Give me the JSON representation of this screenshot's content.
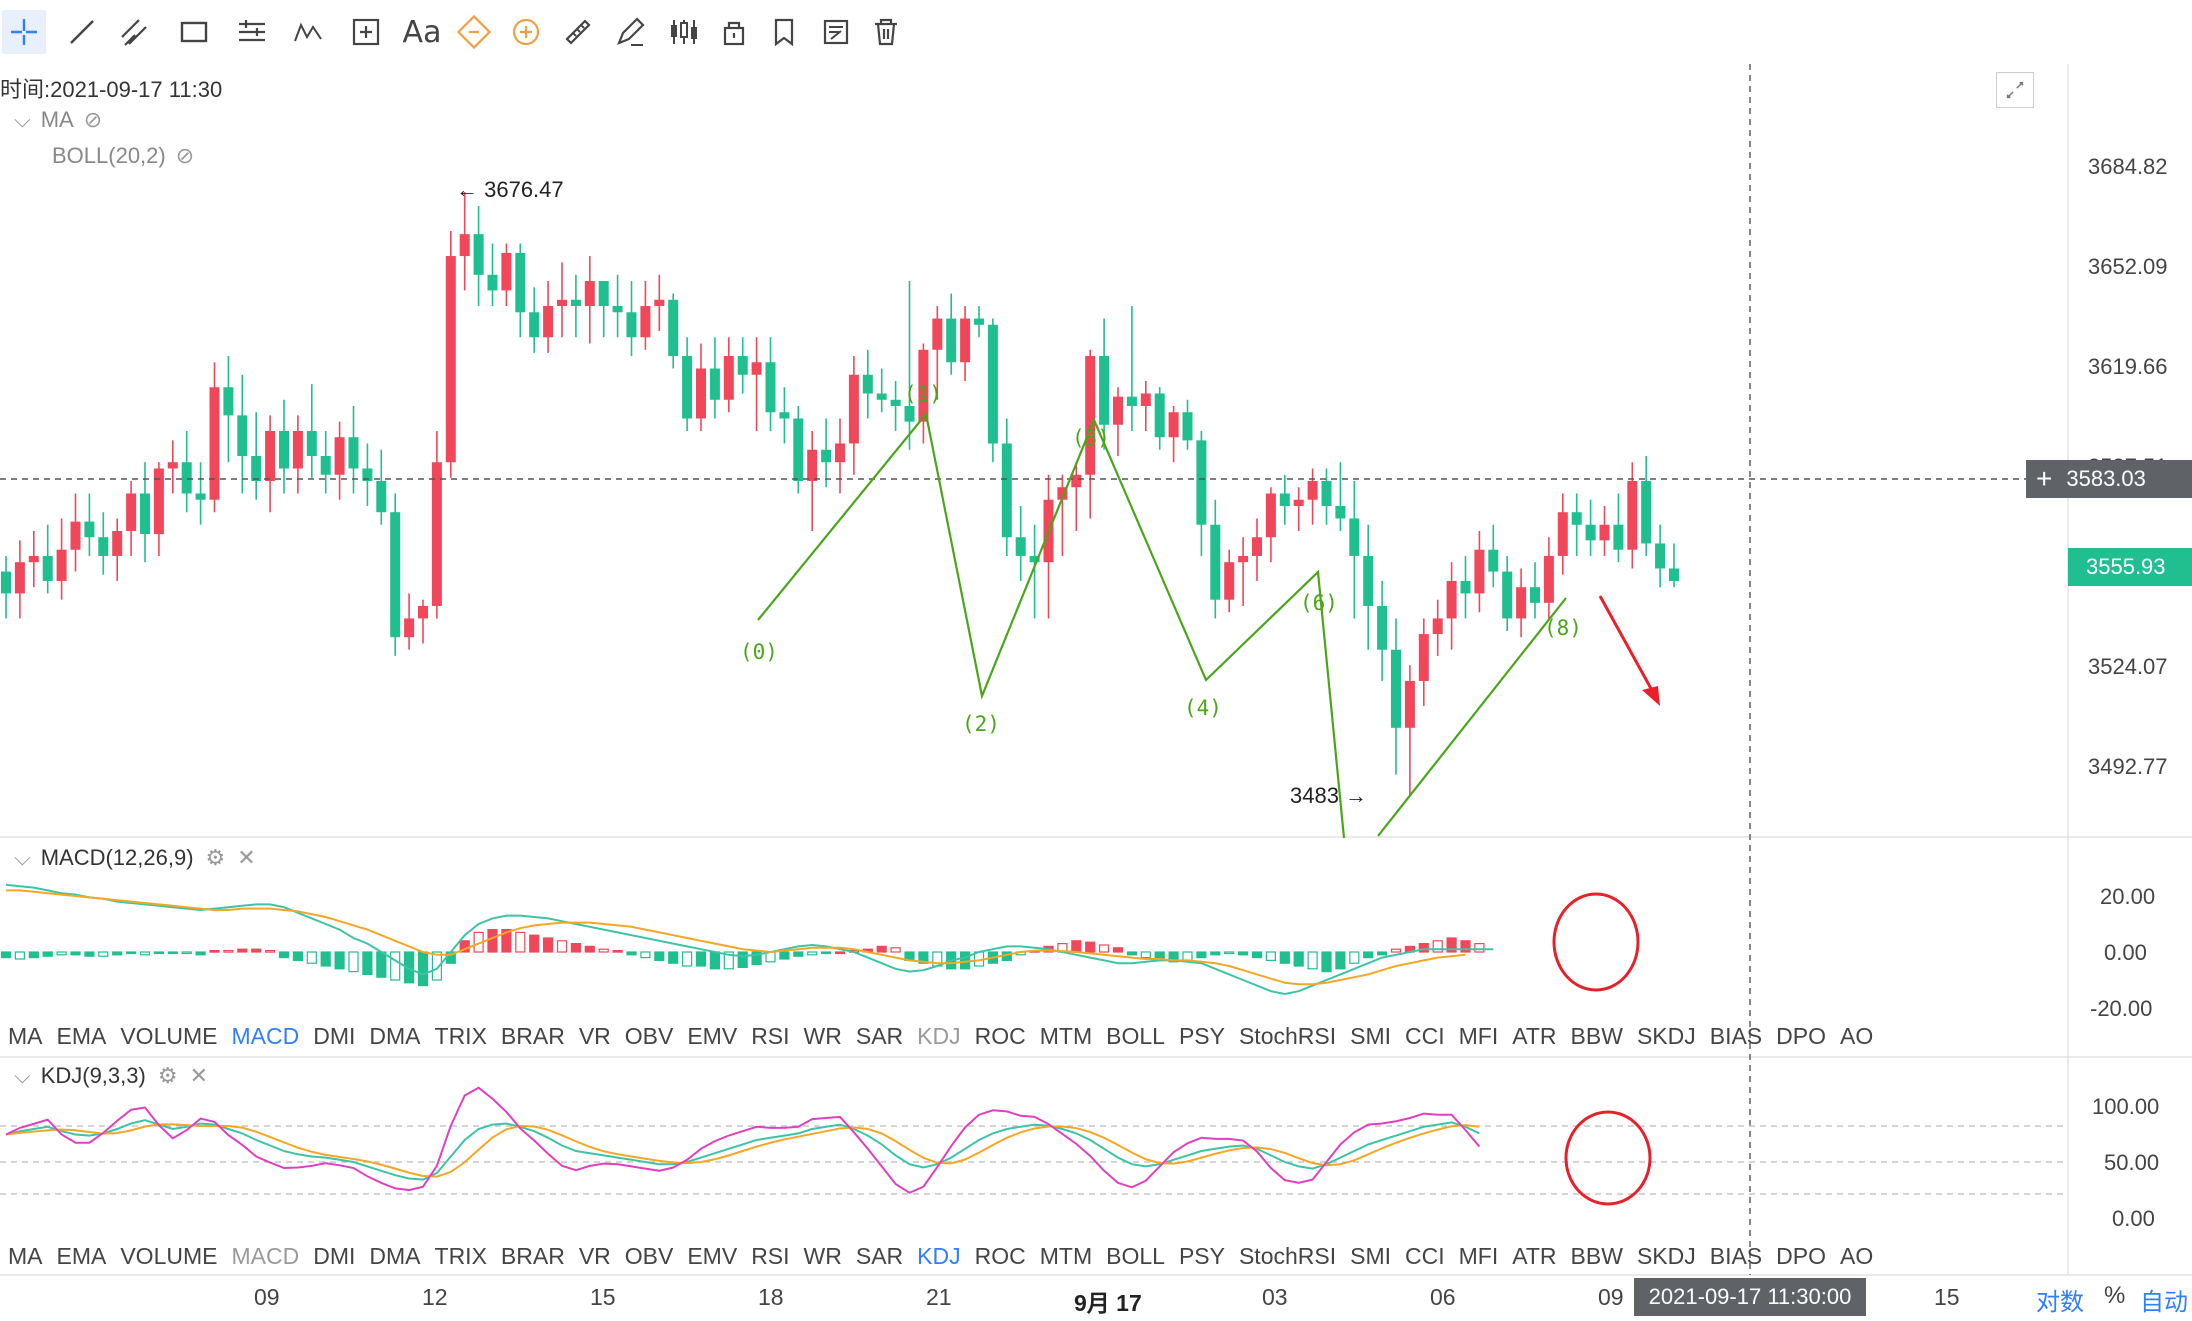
{
  "toolbar": {
    "tools": [
      {
        "icon": "crosshair-icon"
      },
      {
        "icon": "trend-line-icon"
      },
      {
        "icon": "parallel-channel-icon"
      },
      {
        "icon": "rectangle-icon"
      },
      {
        "icon": "fibonacci-icon"
      },
      {
        "icon": "elliott-wave-icon"
      },
      {
        "icon": "measure-box-icon"
      },
      {
        "icon": "text-icon",
        "label": "Aa"
      },
      {
        "icon": "magnet-icon"
      },
      {
        "icon": "magnet-strong-icon"
      },
      {
        "icon": "ruler-icon"
      },
      {
        "icon": "pencil-icon"
      },
      {
        "icon": "candles-icon"
      },
      {
        "icon": "lock-icon"
      },
      {
        "icon": "bookmark-icon"
      },
      {
        "icon": "note-icon"
      },
      {
        "icon": "trash-icon"
      }
    ]
  },
  "info": {
    "time_label": "时间:2021-09-17 11:30",
    "ma_label": "MA",
    "boll_label": "BOLL(20,2)",
    "max_price_label": "3676.47",
    "min_price_label": "3483"
  },
  "indicators": {
    "macd_label": "MACD(12,26,9)",
    "kdj_label": "KDJ(9,3,3)",
    "tabs": [
      "MA",
      "EMA",
      "VOLUME",
      "MACD",
      "DMI",
      "DMA",
      "TRIX",
      "BRAR",
      "VR",
      "OBV",
      "EMV",
      "RSI",
      "WR",
      "SAR",
      "KDJ",
      "ROC",
      "MTM",
      "BOLL",
      "PSY",
      "StochRSI",
      "SMI",
      "CCI",
      "MFI",
      "ATR",
      "BBW",
      "SKDJ",
      "BIAS",
      "DPO",
      "AO"
    ],
    "tabs_row1_active": "MACD",
    "tabs_row1_muted": "KDJ",
    "tabs_row2_active": "KDJ",
    "tabs_row2_muted": "MACD"
  },
  "price_axis": {
    "ticks": [
      "3684.82",
      "3652.09",
      "3619.66",
      "3587.51",
      "3524.07",
      "3492.77"
    ],
    "crosshair_price": "3583.03",
    "current_price": "3555.93",
    "current_color": "#1fbf8f",
    "macd_ticks": [
      "20.00",
      "0.00",
      "-20.00"
    ],
    "kdj_ticks": [
      "100.00",
      "50.00",
      "0.00"
    ]
  },
  "time_axis": {
    "labels": [
      "09",
      "12",
      "15",
      "18",
      "21",
      "9月 17",
      "03",
      "06",
      "09",
      "15"
    ],
    "bold_label": "9月 17",
    "cursor_time": "2021-09-17 11:30:00",
    "log_button": "对数",
    "percent_button": "%",
    "auto_button": "自动"
  },
  "colors": {
    "up": "#f0485a",
    "down": "#1fbf8f",
    "wave": "#4aa619",
    "annotation": "#e8202a",
    "macd_dif": "#3cc4a6",
    "macd_dea": "#f5a623",
    "kdj_k": "#3cc4a6",
    "kdj_d": "#f5a623",
    "kdj_j": "#e040c0"
  },
  "chart_data": {
    "type": "candlestick",
    "price_range": [
      3470,
      3700
    ],
    "max_price": 3676.47,
    "min_price": 3483,
    "ohlc": [
      [
        3555,
        3560,
        3540,
        3548
      ],
      [
        3548,
        3565,
        3540,
        3558
      ],
      [
        3558,
        3568,
        3550,
        3560
      ],
      [
        3560,
        3570,
        3548,
        3552
      ],
      [
        3552,
        3572,
        3546,
        3562
      ],
      [
        3562,
        3580,
        3555,
        3571
      ],
      [
        3571,
        3580,
        3560,
        3566
      ],
      [
        3566,
        3574,
        3554,
        3560
      ],
      [
        3560,
        3572,
        3552,
        3568
      ],
      [
        3568,
        3584,
        3560,
        3580
      ],
      [
        3580,
        3590,
        3558,
        3567
      ],
      [
        3567,
        3590,
        3560,
        3588
      ],
      [
        3588,
        3597,
        3580,
        3590
      ],
      [
        3590,
        3600,
        3574,
        3580
      ],
      [
        3580,
        3590,
        3570,
        3578
      ],
      [
        3578,
        3622,
        3574,
        3614
      ],
      [
        3614,
        3624,
        3590,
        3605
      ],
      [
        3605,
        3618,
        3580,
        3592
      ],
      [
        3592,
        3606,
        3578,
        3584
      ],
      [
        3584,
        3605,
        3574,
        3600
      ],
      [
        3600,
        3610,
        3580,
        3588
      ],
      [
        3588,
        3605,
        3580,
        3600
      ],
      [
        3600,
        3615,
        3585,
        3592
      ],
      [
        3592,
        3600,
        3580,
        3586
      ],
      [
        3586,
        3603,
        3578,
        3598
      ],
      [
        3598,
        3608,
        3580,
        3588
      ],
      [
        3588,
        3596,
        3576,
        3584
      ],
      [
        3584,
        3594,
        3570,
        3574
      ],
      [
        3574,
        3580,
        3528,
        3534
      ],
      [
        3534,
        3548,
        3530,
        3540
      ],
      [
        3540,
        3546,
        3532,
        3544
      ],
      [
        3544,
        3600,
        3540,
        3590
      ],
      [
        3590,
        3664,
        3585,
        3656
      ],
      [
        3656,
        3676.47,
        3645,
        3663
      ],
      [
        3663,
        3672,
        3640,
        3650
      ],
      [
        3650,
        3660,
        3640,
        3645
      ],
      [
        3645,
        3660,
        3640,
        3657
      ],
      [
        3657,
        3660,
        3630,
        3638
      ],
      [
        3638,
        3646,
        3625,
        3630
      ],
      [
        3630,
        3648,
        3625,
        3640
      ],
      [
        3640,
        3654,
        3630,
        3642
      ],
      [
        3642,
        3650,
        3630,
        3640
      ],
      [
        3640,
        3656,
        3628,
        3648
      ],
      [
        3648,
        3648,
        3630,
        3640
      ],
      [
        3640,
        3650,
        3630,
        3638
      ],
      [
        3638,
        3648,
        3624,
        3630
      ],
      [
        3630,
        3648,
        3626,
        3640
      ],
      [
        3640,
        3650,
        3632,
        3642
      ],
      [
        3642,
        3644,
        3620,
        3624
      ],
      [
        3624,
        3630,
        3600,
        3604
      ],
      [
        3604,
        3628,
        3600,
        3620
      ],
      [
        3620,
        3630,
        3604,
        3610
      ],
      [
        3610,
        3630,
        3606,
        3624
      ],
      [
        3624,
        3630,
        3612,
        3618
      ],
      [
        3618,
        3630,
        3600,
        3622
      ],
      [
        3622,
        3630,
        3600,
        3606
      ],
      [
        3606,
        3614,
        3596,
        3604
      ],
      [
        3604,
        3608,
        3580,
        3584
      ],
      [
        3584,
        3600,
        3568,
        3594
      ],
      [
        3594,
        3604,
        3582,
        3590
      ],
      [
        3590,
        3604,
        3580,
        3596
      ],
      [
        3596,
        3624,
        3586,
        3618
      ],
      [
        3618,
        3626,
        3604,
        3612
      ],
      [
        3612,
        3620,
        3606,
        3610
      ],
      [
        3610,
        3616,
        3600,
        3608
      ],
      [
        3608,
        3648,
        3594,
        3603
      ],
      [
        3603,
        3628,
        3596,
        3626
      ],
      [
        3626,
        3640,
        3610,
        3636
      ],
      [
        3636,
        3644,
        3618,
        3622
      ],
      [
        3622,
        3640,
        3616,
        3636
      ],
      [
        3636,
        3640,
        3630,
        3634
      ],
      [
        3634,
        3636,
        3590,
        3596
      ],
      [
        3596,
        3604,
        3560,
        3566
      ],
      [
        3566,
        3576,
        3552,
        3560
      ],
      [
        3560,
        3570,
        3540,
        3558
      ],
      [
        3558,
        3586,
        3540,
        3578
      ],
      [
        3578,
        3586,
        3560,
        3582
      ],
      [
        3582,
        3590,
        3568,
        3586
      ],
      [
        3586,
        3626,
        3572,
        3624
      ],
      [
        3624,
        3636,
        3594,
        3602
      ],
      [
        3602,
        3614,
        3592,
        3611
      ],
      [
        3611,
        3640,
        3600,
        3608
      ],
      [
        3608,
        3616,
        3600,
        3612
      ],
      [
        3612,
        3614,
        3594,
        3598
      ],
      [
        3598,
        3608,
        3590,
        3606
      ],
      [
        3606,
        3610,
        3594,
        3597
      ],
      [
        3597,
        3600,
        3560,
        3570
      ],
      [
        3570,
        3578,
        3540,
        3546
      ],
      [
        3546,
        3562,
        3542,
        3558
      ],
      [
        3558,
        3566,
        3544,
        3560
      ],
      [
        3560,
        3572,
        3552,
        3566
      ],
      [
        3566,
        3582,
        3558,
        3580
      ],
      [
        3580,
        3586,
        3570,
        3576
      ],
      [
        3576,
        3582,
        3568,
        3578
      ],
      [
        3578,
        3588,
        3570,
        3584
      ],
      [
        3584,
        3588,
        3570,
        3576
      ],
      [
        3576,
        3590,
        3568,
        3572
      ],
      [
        3572,
        3584,
        3540,
        3560
      ],
      [
        3560,
        3570,
        3530,
        3544
      ],
      [
        3544,
        3552,
        3520,
        3530
      ],
      [
        3530,
        3540,
        3490,
        3505
      ],
      [
        3505,
        3525,
        3483,
        3520
      ],
      [
        3520,
        3540,
        3512,
        3535
      ],
      [
        3535,
        3546,
        3528,
        3540
      ],
      [
        3540,
        3558,
        3530,
        3552
      ],
      [
        3552,
        3560,
        3540,
        3548
      ],
      [
        3548,
        3568,
        3542,
        3562
      ],
      [
        3562,
        3570,
        3550,
        3555
      ],
      [
        3555,
        3560,
        3536,
        3540
      ],
      [
        3540,
        3556,
        3534,
        3550
      ],
      [
        3550,
        3558,
        3540,
        3545
      ],
      [
        3545,
        3566,
        3540,
        3560
      ],
      [
        3560,
        3580,
        3554,
        3574
      ],
      [
        3574,
        3580,
        3560,
        3570
      ],
      [
        3570,
        3578,
        3560,
        3565
      ],
      [
        3565,
        3576,
        3560,
        3570
      ],
      [
        3570,
        3580,
        3558,
        3562
      ],
      [
        3562,
        3590,
        3556,
        3584
      ],
      [
        3584,
        3592,
        3560,
        3564
      ],
      [
        3564,
        3570,
        3550,
        3556
      ],
      [
        3556,
        3564,
        3550,
        3552
      ]
    ],
    "macd": {
      "dif": [
        24,
        23.5,
        23,
        22,
        21,
        20.5,
        19.5,
        19,
        18,
        17.5,
        17,
        16.5,
        16,
        15.5,
        15,
        15.5,
        16,
        16.5,
        17,
        17,
        16,
        14,
        12,
        10,
        8,
        5,
        3,
        0,
        -3,
        -6,
        -8,
        -6,
        0,
        6,
        10,
        12,
        13,
        13,
        12.5,
        12,
        11,
        10,
        9,
        8,
        7,
        6,
        5,
        4,
        3,
        2,
        1,
        0,
        -1,
        -1.5,
        -1,
        0,
        1,
        2,
        2.5,
        2,
        1,
        0,
        -2,
        -4,
        -6,
        -7,
        -6.5,
        -5,
        -3,
        -2,
        0,
        1,
        2,
        2,
        1.5,
        1,
        0,
        -1,
        -2,
        -3,
        -4,
        -4,
        -3.5,
        -3,
        -3,
        -3.5,
        -4,
        -6,
        -8,
        -10,
        -12,
        -14,
        -15,
        -14,
        -12,
        -10,
        -8,
        -6,
        -4,
        -2,
        -1,
        0,
        1,
        1,
        1,
        1,
        1,
        1
      ],
      "dea": [
        22,
        22,
        21.5,
        21,
        20.5,
        20,
        19.5,
        19,
        18.5,
        18,
        17.5,
        17,
        16.5,
        16,
        15.5,
        15,
        15,
        15.5,
        15.5,
        15.5,
        15,
        14.5,
        13.5,
        12.5,
        11,
        9.5,
        8,
        6,
        4,
        2,
        0,
        -1,
        -1,
        1,
        3,
        5,
        7,
        8.5,
        9.5,
        10,
        10.5,
        10.5,
        10.5,
        10,
        9.5,
        9,
        8,
        7,
        6,
        5,
        4,
        3,
        2,
        1,
        0.5,
        0,
        0.5,
        1,
        1.5,
        1.5,
        1.5,
        1,
        0,
        -1,
        -2,
        -3,
        -3.5,
        -4,
        -4,
        -3.5,
        -3,
        -2,
        -1,
        0,
        0.5,
        0.5,
        0.3,
        0,
        -0.5,
        -1,
        -1.5,
        -2,
        -2.5,
        -2.5,
        -3,
        -3,
        -3.5,
        -4,
        -5,
        -6.5,
        -8,
        -9.5,
        -11,
        -11.5,
        -11.5,
        -11,
        -10,
        -9,
        -8,
        -6.5,
        -5,
        -4,
        -3,
        -2,
        -1.5,
        -1
      ],
      "hist": [
        -2,
        -2.5,
        -2,
        -1.5,
        -1,
        -1,
        -1.5,
        -1.5,
        -1,
        -0.5,
        -1,
        -0.5,
        -0.5,
        -0.5,
        -1,
        0.5,
        0.5,
        1,
        1,
        0.5,
        -2,
        -3,
        -4,
        -5,
        -6,
        -7,
        -8,
        -9,
        -10,
        -11,
        -12,
        -10,
        -4,
        4,
        7,
        8,
        8,
        7,
        6,
        5,
        4,
        3,
        2,
        1,
        0.5,
        -1,
        -2,
        -3,
        -4,
        -5,
        -5,
        -6,
        -6,
        -5.5,
        -4.5,
        -3.5,
        -2.5,
        -1.5,
        -1,
        -0.5,
        0,
        0.5,
        1,
        2,
        1.5,
        -3,
        -4,
        -5,
        -6,
        -6,
        -5,
        -4,
        -3,
        -1,
        0.5,
        2,
        3,
        4,
        3.5,
        2.5,
        1.5,
        -1,
        -2,
        -3,
        -3.5,
        -3,
        -2,
        -1,
        -0.5,
        -1,
        -2,
        -3,
        -4,
        -5,
        -6,
        -7,
        -6,
        -4,
        -2,
        -1,
        1,
        2,
        3,
        4,
        5,
        4,
        3
      ]
    },
    "kdj": {
      "k": [
        65,
        68,
        70,
        72,
        68,
        65,
        64,
        66,
        70,
        75,
        78,
        74,
        70,
        72,
        75,
        74,
        70,
        66,
        60,
        55,
        50,
        47,
        45,
        44,
        42,
        40,
        36,
        32,
        28,
        25,
        24,
        30,
        45,
        60,
        70,
        74,
        75,
        72,
        68,
        62,
        55,
        50,
        48,
        46,
        44,
        42,
        40,
        38,
        38,
        40,
        44,
        48,
        52,
        56,
        60,
        62,
        64,
        66,
        70,
        72,
        74,
        70,
        64,
        56,
        46,
        38,
        35,
        38,
        44,
        52,
        60,
        66,
        70,
        72,
        74,
        73,
        70,
        66,
        60,
        52,
        44,
        38,
        36,
        38,
        42,
        46,
        50,
        52,
        54,
        55,
        52,
        46,
        40,
        36,
        34,
        38,
        44,
        50,
        56,
        60,
        64,
        68,
        72,
        74,
        76,
        72,
        66
      ]
    },
    "time_labels": [
      "09",
      "12",
      "15",
      "18",
      "21",
      "9月 17",
      "03",
      "06",
      "09",
      "15"
    ],
    "wave_labels": [
      "(0)",
      "(1)",
      "(2)",
      "(3)",
      "(4)",
      "(6)",
      "(8)"
    ]
  }
}
